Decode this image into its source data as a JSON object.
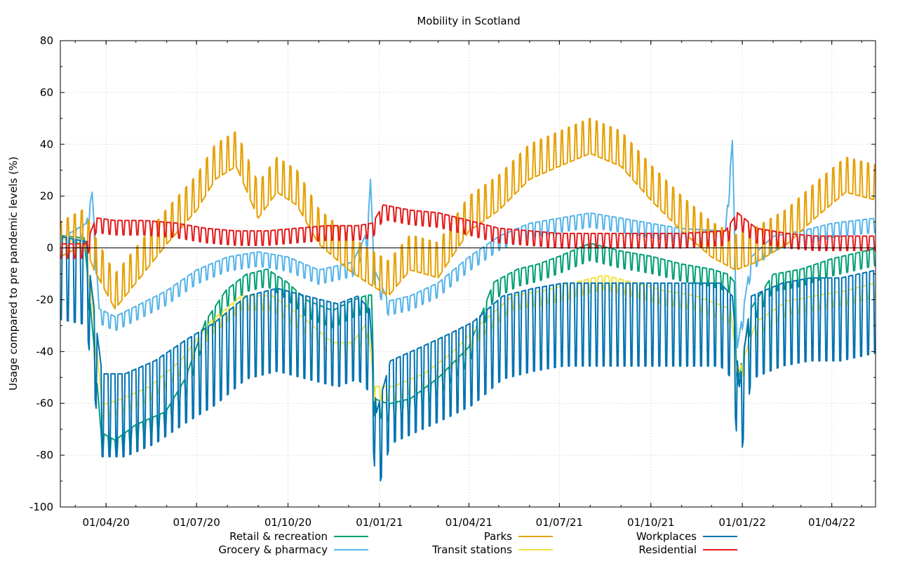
{
  "chart_data": {
    "type": "line",
    "title": "Mobility in Scotland",
    "xlabel": "",
    "ylabel": "Usage compared to pre pandemic levels (%)",
    "xlim": [
      "2020-02-15",
      "2022-05-15"
    ],
    "ylim": [
      -100,
      80
    ],
    "y_ticks": [
      -100,
      -80,
      -60,
      -40,
      -20,
      0,
      20,
      40,
      60,
      80
    ],
    "x_ticks": [
      {
        "date": "2020-04-01",
        "label": "01/04/20"
      },
      {
        "date": "2020-07-01",
        "label": "01/07/20"
      },
      {
        "date": "2020-10-01",
        "label": "01/10/20"
      },
      {
        "date": "2021-01-01",
        "label": "01/01/21"
      },
      {
        "date": "2021-04-01",
        "label": "01/04/21"
      },
      {
        "date": "2021-07-01",
        "label": "01/07/21"
      },
      {
        "date": "2021-10-01",
        "label": "01/10/21"
      },
      {
        "date": "2022-01-01",
        "label": "01/01/22"
      },
      {
        "date": "2022-04-01",
        "label": "01/04/22"
      }
    ],
    "grid": true,
    "zero_line": true,
    "legend_position": "bottom",
    "series": [
      {
        "name": "Retail & recreation",
        "color": "#009e73",
        "weekly_amplitude": 6,
        "points": [
          [
            "2020-02-15",
            3
          ],
          [
            "2020-03-10",
            2
          ],
          [
            "2020-03-20",
            -40
          ],
          [
            "2020-03-27",
            -73
          ],
          [
            "2020-04-10",
            -76
          ],
          [
            "2020-05-01",
            -70
          ],
          [
            "2020-05-31",
            -65
          ],
          [
            "2020-06-20",
            -52
          ],
          [
            "2020-07-10",
            -30
          ],
          [
            "2020-07-31",
            -18
          ],
          [
            "2020-08-20",
            -12
          ],
          [
            "2020-09-10",
            -10
          ],
          [
            "2020-09-30",
            -15
          ],
          [
            "2020-10-20",
            -22
          ],
          [
            "2020-11-15",
            -26
          ],
          [
            "2020-12-05",
            -22
          ],
          [
            "2020-12-20",
            -20
          ],
          [
            "2020-12-24",
            -20
          ],
          [
            "2020-12-27",
            -60
          ],
          [
            "2021-01-10",
            -62
          ],
          [
            "2021-02-01",
            -60
          ],
          [
            "2021-03-01",
            -52
          ],
          [
            "2021-04-01",
            -40
          ],
          [
            "2021-04-26",
            -15
          ],
          [
            "2021-05-20",
            -10
          ],
          [
            "2021-06-10",
            -8
          ],
          [
            "2021-07-01",
            -5
          ],
          [
            "2021-08-01",
            0
          ],
          [
            "2021-09-01",
            -3
          ],
          [
            "2021-10-01",
            -5
          ],
          [
            "2021-11-01",
            -8
          ],
          [
            "2021-12-01",
            -10
          ],
          [
            "2021-12-18",
            -12
          ],
          [
            "2021-12-24",
            -15
          ],
          [
            "2021-12-27",
            -55
          ],
          [
            "2022-01-10",
            -25
          ],
          [
            "2022-02-01",
            -12
          ],
          [
            "2022-03-01",
            -10
          ],
          [
            "2022-04-01",
            -6
          ],
          [
            "2022-05-15",
            -2
          ]
        ]
      },
      {
        "name": "Grocery & pharmacy",
        "color": "#56b4e9",
        "weekly_amplitude": 5,
        "points": [
          [
            "2020-02-15",
            2
          ],
          [
            "2020-03-12",
            8
          ],
          [
            "2020-03-18",
            20
          ],
          [
            "2020-03-25",
            -25
          ],
          [
            "2020-04-10",
            -28
          ],
          [
            "2020-05-01",
            -24
          ],
          [
            "2020-06-01",
            -18
          ],
          [
            "2020-07-01",
            -10
          ],
          [
            "2020-08-01",
            -5
          ],
          [
            "2020-09-01",
            -3
          ],
          [
            "2020-10-01",
            -5
          ],
          [
            "2020-11-01",
            -10
          ],
          [
            "2020-12-05",
            -7
          ],
          [
            "2020-12-20",
            5
          ],
          [
            "2020-12-23",
            25
          ],
          [
            "2020-12-27",
            -10
          ],
          [
            "2021-01-10",
            -22
          ],
          [
            "2021-02-01",
            -20
          ],
          [
            "2021-03-01",
            -15
          ],
          [
            "2021-04-01",
            -5
          ],
          [
            "2021-05-01",
            3
          ],
          [
            "2021-06-01",
            8
          ],
          [
            "2021-07-01",
            10
          ],
          [
            "2021-08-01",
            12
          ],
          [
            "2021-09-01",
            10
          ],
          [
            "2021-10-01",
            8
          ],
          [
            "2021-11-01",
            6
          ],
          [
            "2021-12-15",
            5
          ],
          [
            "2021-12-22",
            40
          ],
          [
            "2021-12-27",
            -40
          ],
          [
            "2022-01-10",
            -5
          ],
          [
            "2022-02-01",
            3
          ],
          [
            "2022-03-01",
            5
          ],
          [
            "2022-04-01",
            8
          ],
          [
            "2022-05-15",
            10
          ]
        ]
      },
      {
        "name": "Parks",
        "color": "#e69f00",
        "weekly_amplitude": 10,
        "points": [
          [
            "2020-02-15",
            0
          ],
          [
            "2020-03-10",
            5
          ],
          [
            "2020-03-20",
            -5
          ],
          [
            "2020-04-10",
            -20
          ],
          [
            "2020-05-01",
            -10
          ],
          [
            "2020-06-01",
            5
          ],
          [
            "2020-07-01",
            18
          ],
          [
            "2020-07-20",
            30
          ],
          [
            "2020-08-10",
            35
          ],
          [
            "2020-09-01",
            15
          ],
          [
            "2020-09-20",
            25
          ],
          [
            "2020-10-10",
            20
          ],
          [
            "2020-11-01",
            5
          ],
          [
            "2020-12-01",
            -5
          ],
          [
            "2020-12-20",
            -10
          ],
          [
            "2021-01-10",
            -15
          ],
          [
            "2021-02-01",
            -5
          ],
          [
            "2021-03-01",
            -8
          ],
          [
            "2021-04-01",
            10
          ],
          [
            "2021-05-01",
            18
          ],
          [
            "2021-06-01",
            30
          ],
          [
            "2021-07-01",
            35
          ],
          [
            "2021-08-01",
            40
          ],
          [
            "2021-09-01",
            35
          ],
          [
            "2021-10-01",
            22
          ],
          [
            "2021-11-01",
            10
          ],
          [
            "2021-12-01",
            0
          ],
          [
            "2021-12-25",
            -5
          ],
          [
            "2022-01-15",
            -2
          ],
          [
            "2022-02-15",
            5
          ],
          [
            "2022-03-15",
            15
          ],
          [
            "2022-04-15",
            25
          ],
          [
            "2022-05-15",
            22
          ]
        ]
      },
      {
        "name": "Transit stations",
        "color": "#f0e442",
        "weekly_amplitude": 5,
        "points": [
          [
            "2020-02-15",
            2
          ],
          [
            "2020-03-12",
            0
          ],
          [
            "2020-03-20",
            -30
          ],
          [
            "2020-03-28",
            -62
          ],
          [
            "2020-04-15",
            -60
          ],
          [
            "2020-05-15",
            -55
          ],
          [
            "2020-06-15",
            -45
          ],
          [
            "2020-07-15",
            -30
          ],
          [
            "2020-08-15",
            -20
          ],
          [
            "2020-09-15",
            -20
          ],
          [
            "2020-10-15",
            -28
          ],
          [
            "2020-11-15",
            -38
          ],
          [
            "2020-12-05",
            -38
          ],
          [
            "2020-12-20",
            -30
          ],
          [
            "2020-12-27",
            -55
          ],
          [
            "2021-01-15",
            -55
          ],
          [
            "2021-02-15",
            -50
          ],
          [
            "2021-03-15",
            -42
          ],
          [
            "2021-04-15",
            -30
          ],
          [
            "2021-05-15",
            -20
          ],
          [
            "2021-06-15",
            -18
          ],
          [
            "2021-07-15",
            -15
          ],
          [
            "2021-08-15",
            -12
          ],
          [
            "2021-09-15",
            -15
          ],
          [
            "2021-10-15",
            -18
          ],
          [
            "2021-11-15",
            -20
          ],
          [
            "2021-12-20",
            -25
          ],
          [
            "2021-12-28",
            -50
          ],
          [
            "2022-01-15",
            -30
          ],
          [
            "2022-02-15",
            -22
          ],
          [
            "2022-03-15",
            -20
          ],
          [
            "2022-04-15",
            -18
          ],
          [
            "2022-05-15",
            -15
          ]
        ]
      },
      {
        "name": "Workplaces",
        "color": "#0072b2",
        "weekly_amplitude": 16,
        "points": [
          [
            "2020-02-15",
            -2
          ],
          [
            "2020-03-12",
            -4
          ],
          [
            "2020-03-20",
            -30
          ],
          [
            "2020-03-28",
            -55
          ],
          [
            "2020-04-20",
            -55
          ],
          [
            "2020-05-20",
            -50
          ],
          [
            "2020-06-20",
            -42
          ],
          [
            "2020-07-20",
            -35
          ],
          [
            "2020-08-20",
            -25
          ],
          [
            "2020-09-20",
            -22
          ],
          [
            "2020-10-20",
            -25
          ],
          [
            "2020-11-20",
            -28
          ],
          [
            "2020-12-10",
            -25
          ],
          [
            "2020-12-22",
            -30
          ],
          [
            "2020-12-29",
            -70
          ],
          [
            "2021-01-12",
            -50
          ],
          [
            "2021-02-10",
            -45
          ],
          [
            "2021-03-10",
            -40
          ],
          [
            "2021-04-05",
            -35
          ],
          [
            "2021-05-05",
            -25
          ],
          [
            "2021-06-05",
            -22
          ],
          [
            "2021-07-05",
            -20
          ],
          [
            "2021-08-05",
            -20
          ],
          [
            "2021-09-05",
            -20
          ],
          [
            "2021-10-05",
            -20
          ],
          [
            "2021-11-05",
            -20
          ],
          [
            "2021-12-10",
            -20
          ],
          [
            "2021-12-22",
            -25
          ],
          [
            "2021-12-29",
            -60
          ],
          [
            "2022-01-10",
            -25
          ],
          [
            "2022-02-10",
            -20
          ],
          [
            "2022-03-10",
            -18
          ],
          [
            "2022-04-10",
            -18
          ],
          [
            "2022-05-15",
            -15
          ]
        ]
      },
      {
        "name": "Residential",
        "color": "#e41a1c",
        "weekly_amplitude": 4,
        "points": [
          [
            "2020-02-15",
            0
          ],
          [
            "2020-03-12",
            0
          ],
          [
            "2020-03-22",
            10
          ],
          [
            "2020-04-10",
            9
          ],
          [
            "2020-05-10",
            9
          ],
          [
            "2020-06-10",
            8
          ],
          [
            "2020-07-10",
            6
          ],
          [
            "2020-08-10",
            5
          ],
          [
            "2020-09-10",
            5
          ],
          [
            "2020-10-10",
            6
          ],
          [
            "2020-11-10",
            7
          ],
          [
            "2020-12-10",
            7
          ],
          [
            "2020-12-25",
            8
          ],
          [
            "2021-01-05",
            15
          ],
          [
            "2021-02-01",
            13
          ],
          [
            "2021-03-01",
            12
          ],
          [
            "2021-04-01",
            9
          ],
          [
            "2021-05-01",
            6
          ],
          [
            "2021-06-01",
            5
          ],
          [
            "2021-07-01",
            4
          ],
          [
            "2021-08-01",
            4
          ],
          [
            "2021-09-01",
            4
          ],
          [
            "2021-10-01",
            4
          ],
          [
            "2021-11-01",
            4
          ],
          [
            "2021-12-15",
            5
          ],
          [
            "2021-12-27",
            12
          ],
          [
            "2022-01-15",
            6
          ],
          [
            "2022-02-15",
            4
          ],
          [
            "2022-03-15",
            3
          ],
          [
            "2022-04-15",
            3
          ],
          [
            "2022-05-15",
            3
          ]
        ]
      }
    ]
  }
}
